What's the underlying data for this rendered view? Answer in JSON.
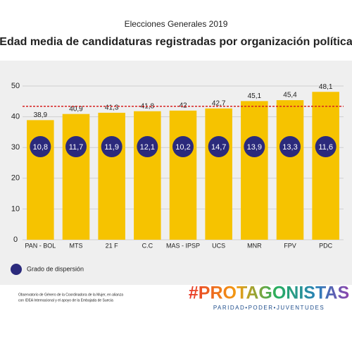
{
  "chart_data": {
    "type": "bar",
    "subtitle": "Elecciones Generales 2019",
    "title": "Edad media de candidaturas registradas por organización política",
    "categories": [
      "PAN - BOL",
      "MTS",
      "21 F",
      "C.C",
      "MAS - IPSP",
      "UCS",
      "MNR",
      "FPV",
      "PDC"
    ],
    "values": [
      38.9,
      40.9,
      41.3,
      41.8,
      42,
      42.7,
      45.1,
      45.4,
      48.1
    ],
    "value_labels": [
      "38,9",
      "40,9",
      "41,3",
      "41,8",
      "42",
      "42,7",
      "45,1",
      "45,4",
      "48,1"
    ],
    "color": "#f6c300",
    "dispersion": {
      "name": "Grado de dispersión",
      "values": [
        10.8,
        11.7,
        11.9,
        12.1,
        10.2,
        14.7,
        13.9,
        13.3,
        11.6
      ],
      "value_labels": [
        "10,8",
        "11,7",
        "11,9",
        "12,1",
        "10,2",
        "14,7",
        "13,9",
        "13,3",
        "11,6"
      ],
      "color": "#2b2a7c"
    },
    "reference_line": {
      "value": 43.4,
      "color": "#d62020"
    },
    "ylim": [
      0,
      50
    ],
    "yticks": [
      0,
      10,
      20,
      30,
      40,
      50
    ],
    "grid": true
  },
  "footer": {
    "note": [
      "Observatorio de Género de la Coordinadora de la Mujer, en alianza",
      "con IDEA Internacional y el apoyo de la Embajada de Suecia"
    ],
    "logo": "#PROTAGONISTAS",
    "tagline": "PARIDAD•PODER•JUVENTUDES"
  }
}
